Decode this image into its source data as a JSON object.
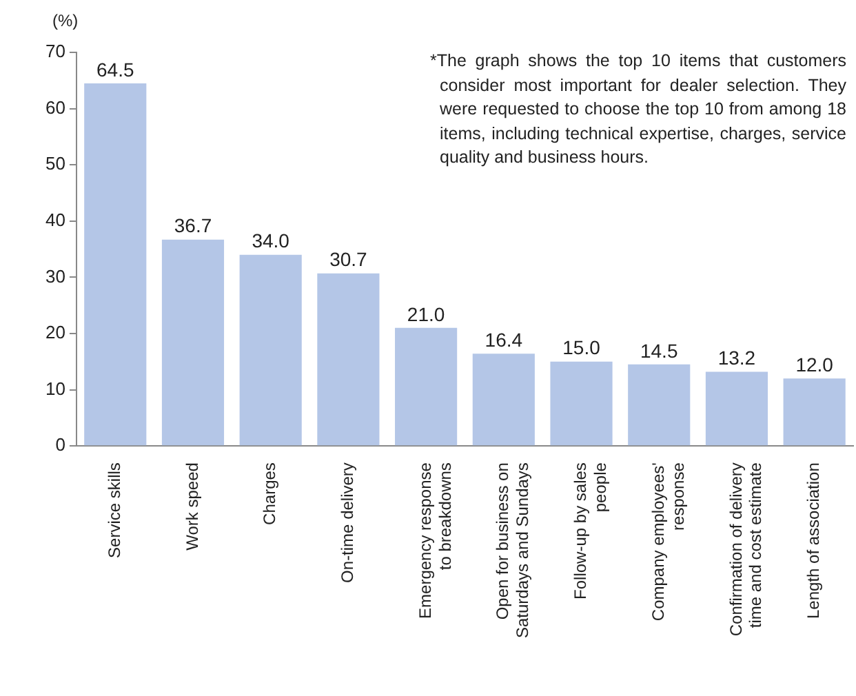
{
  "chart_data": {
    "type": "bar",
    "ylabel": "(%)",
    "categories": [
      "Service skills",
      "Work speed",
      "Charges",
      "On-time delivery",
      "Emergency response\nto breakdowns",
      "Open for business on\nSaturdays and Sundays",
      "Follow-up by sales\npeople",
      "Company employees'\nresponse",
      "Confirmation of delivery\ntime and cost estimate",
      "Length of association"
    ],
    "values": [
      64.5,
      36.7,
      34.0,
      30.7,
      21.0,
      16.4,
      15.0,
      14.5,
      13.2,
      12.0
    ],
    "value_labels": [
      "64.5",
      "36.7",
      "34.0",
      "30.7",
      "21.0",
      "16.4",
      "15.0",
      "14.5",
      "13.2",
      "12.0"
    ],
    "color": "#b4c6e7",
    "ylim": [
      0,
      70
    ],
    "yticks": [
      0,
      10,
      20,
      30,
      40,
      50,
      60,
      70
    ],
    "grid": false,
    "legend": false,
    "annotations": [
      "*The graph shows the top 10 items that customers consider most important for dealer selection. They were requested to choose the top 10 from among 18 items, including technical expertise, charges, service quality and business hours."
    ]
  }
}
